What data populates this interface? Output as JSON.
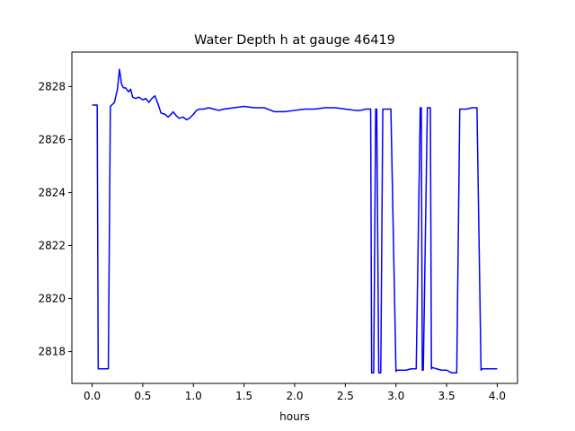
{
  "chart_data": {
    "type": "line",
    "title": "Water Depth h at gauge 46419",
    "xlabel": "hours",
    "ylabel": "",
    "xlim": [
      -0.2,
      4.2
    ],
    "ylim": [
      2816.8,
      2829.3
    ],
    "xticks": [
      0.0,
      0.5,
      1.0,
      1.5,
      2.0,
      2.5,
      3.0,
      3.5,
      4.0
    ],
    "xtick_labels": [
      "0.0",
      "0.5",
      "1.0",
      "1.5",
      "2.0",
      "2.5",
      "3.0",
      "3.5",
      "4.0"
    ],
    "yticks": [
      2818,
      2820,
      2822,
      2824,
      2826,
      2828
    ],
    "ytick_labels": [
      "2818",
      "2820",
      "2822",
      "2824",
      "2826",
      "2828"
    ],
    "grid": false,
    "series": [
      {
        "color": "#0000ff",
        "x": [
          0.0,
          0.05,
          0.06,
          0.16,
          0.18,
          0.22,
          0.25,
          0.27,
          0.29,
          0.31,
          0.33,
          0.36,
          0.38,
          0.4,
          0.43,
          0.46,
          0.5,
          0.53,
          0.56,
          0.59,
          0.62,
          0.65,
          0.68,
          0.72,
          0.75,
          0.78,
          0.8,
          0.83,
          0.86,
          0.9,
          0.93,
          0.96,
          1.0,
          1.03,
          1.06,
          1.1,
          1.15,
          1.2,
          1.25,
          1.3,
          1.4,
          1.5,
          1.6,
          1.7,
          1.8,
          1.9,
          2.0,
          2.1,
          2.2,
          2.3,
          2.4,
          2.5,
          2.6,
          2.65,
          2.7,
          2.75,
          2.76,
          2.78,
          2.8,
          2.81,
          2.83,
          2.85,
          2.87,
          2.88,
          2.9,
          2.95,
          3.0,
          3.01,
          3.05,
          3.1,
          3.15,
          3.2,
          3.24,
          3.25,
          3.26,
          3.27,
          3.31,
          3.34,
          3.35,
          3.36,
          3.4,
          3.45,
          3.5,
          3.55,
          3.6,
          3.63,
          3.64,
          3.7,
          3.75,
          3.8,
          3.84,
          3.85,
          3.9,
          3.95,
          4.0
        ],
        "y": [
          2827.3,
          2827.3,
          2817.35,
          2817.35,
          2827.25,
          2827.4,
          2827.9,
          2828.65,
          2828.1,
          2827.95,
          2827.95,
          2827.8,
          2827.9,
          2827.6,
          2827.55,
          2827.6,
          2827.5,
          2827.55,
          2827.4,
          2827.55,
          2827.65,
          2827.35,
          2827.0,
          2826.95,
          2826.85,
          2826.95,
          2827.05,
          2826.9,
          2826.8,
          2826.85,
          2826.75,
          2826.8,
          2826.95,
          2827.1,
          2827.15,
          2827.15,
          2827.2,
          2827.15,
          2827.1,
          2827.15,
          2827.2,
          2827.25,
          2827.2,
          2827.2,
          2827.05,
          2827.05,
          2827.1,
          2827.15,
          2827.15,
          2827.2,
          2827.2,
          2827.15,
          2827.1,
          2827.1,
          2827.15,
          2827.15,
          2817.2,
          2817.2,
          2827.15,
          2827.15,
          2817.2,
          2817.2,
          2827.15,
          2827.15,
          2827.15,
          2827.15,
          2817.25,
          2817.3,
          2817.3,
          2817.3,
          2817.35,
          2817.35,
          2827.2,
          2827.2,
          2817.3,
          2817.3,
          2827.2,
          2827.2,
          2817.35,
          2817.4,
          2817.35,
          2817.3,
          2817.3,
          2817.2,
          2817.2,
          2827.15,
          2827.15,
          2827.15,
          2827.2,
          2827.2,
          2817.3,
          2817.35,
          2817.35,
          2817.35,
          2817.35
        ]
      }
    ]
  }
}
